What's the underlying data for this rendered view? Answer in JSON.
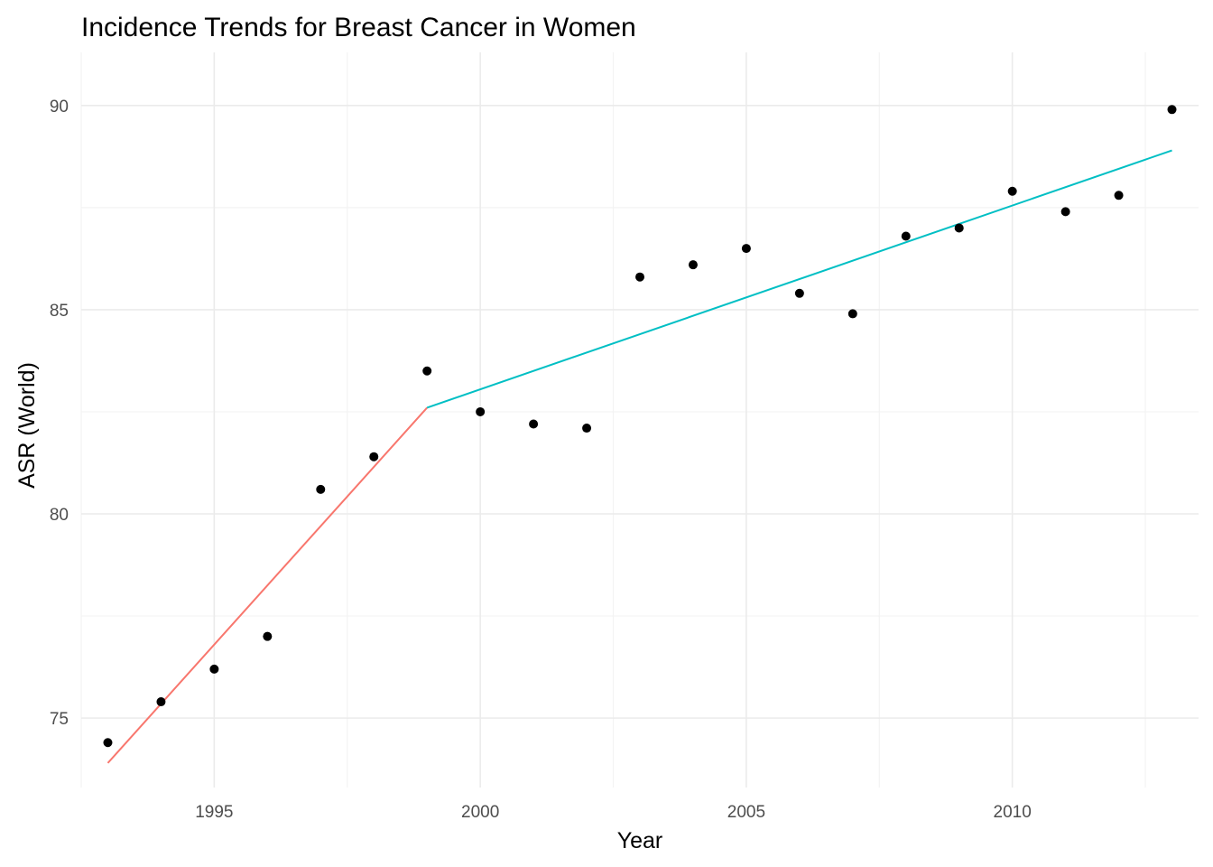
{
  "chart_data": {
    "type": "scatter",
    "title": "Incidence Trends for Breast Cancer in Women",
    "xlabel": "Year",
    "ylabel": "ASR (World)",
    "xlim": [
      1992.5,
      2013.5
    ],
    "ylim": [
      73.3,
      91.3
    ],
    "x_ticks": [
      1995,
      2000,
      2005,
      2010
    ],
    "x_minor_ticks": [
      1992.5,
      1997.5,
      2002.5,
      2007.5,
      2012.5
    ],
    "y_ticks": [
      75,
      80,
      85,
      90
    ],
    "y_minor_ticks": [
      77.5,
      82.5,
      87.5
    ],
    "grid": true,
    "points": {
      "color": "#000000",
      "x": [
        1993,
        1994,
        1995,
        1996,
        1997,
        1998,
        1999,
        2000,
        2001,
        2002,
        2003,
        2004,
        2005,
        2006,
        2007,
        2008,
        2009,
        2010,
        2011,
        2012,
        2013
      ],
      "y": [
        74.4,
        75.4,
        76.2,
        77.0,
        80.6,
        81.4,
        83.5,
        82.5,
        82.2,
        82.1,
        85.8,
        86.1,
        86.5,
        85.4,
        84.9,
        86.8,
        87.0,
        87.9,
        87.4,
        87.8,
        89.9
      ]
    },
    "trend_lines": [
      {
        "color": "#F8766D",
        "x": [
          1993,
          1999
        ],
        "y": [
          73.9,
          82.6
        ]
      },
      {
        "color": "#00BFC4",
        "x": [
          1999,
          2013
        ],
        "y": [
          82.6,
          88.9
        ]
      }
    ]
  }
}
